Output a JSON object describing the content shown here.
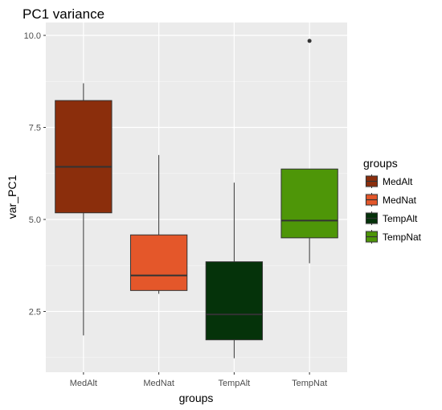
{
  "chart_data": {
    "type": "boxplot",
    "title": "PC1 variance",
    "xlabel": "groups",
    "ylabel": "var_PC1",
    "ylim": [
      0.85,
      10.35
    ],
    "yticks": [
      2.5,
      5.0,
      7.5,
      10.0
    ],
    "ytick_labels": [
      "2.5",
      "5.0",
      "7.5",
      "10.0"
    ],
    "grid": true,
    "legend": {
      "title": "groups",
      "position": "right"
    },
    "categories": [
      "MedAlt",
      "MedNat",
      "TempAlt",
      "TempNat"
    ],
    "series": [
      {
        "name": "MedAlt",
        "color": "#8B2E0C",
        "min": 1.85,
        "q1": 5.18,
        "median": 6.43,
        "q3": 8.23,
        "max": 8.7,
        "outliers": []
      },
      {
        "name": "MedNat",
        "color": "#E4572A",
        "min": 2.98,
        "q1": 3.07,
        "median": 3.48,
        "q3": 4.58,
        "max": 6.75,
        "outliers": []
      },
      {
        "name": "TempAlt",
        "color": "#05330A",
        "min": 1.23,
        "q1": 1.73,
        "median": 2.42,
        "q3": 3.85,
        "max": 6.0,
        "outliers": []
      },
      {
        "name": "TempNat",
        "color": "#4E9608",
        "min": 3.81,
        "q1": 4.5,
        "median": 4.97,
        "q3": 6.37,
        "max": 6.37,
        "outliers": [
          9.85
        ]
      }
    ]
  }
}
